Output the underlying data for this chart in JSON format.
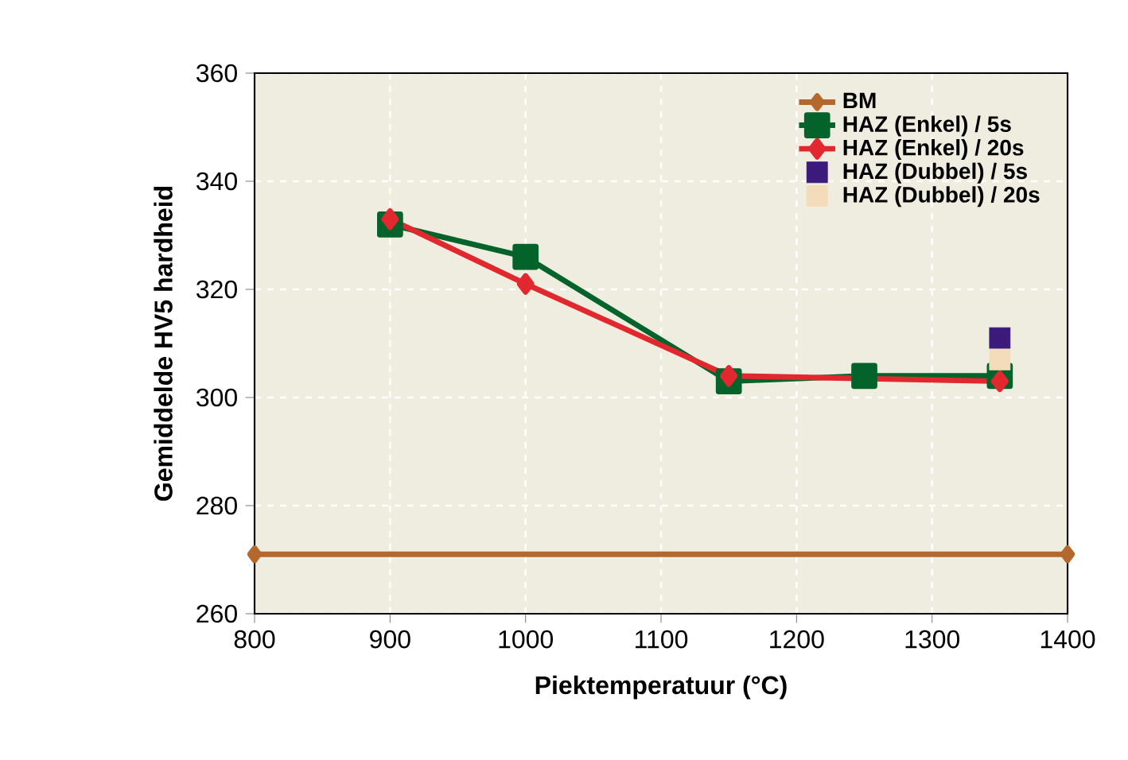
{
  "chart_data": {
    "type": "line",
    "xlabel": "Piektemperatuur (°C)",
    "ylabel": "Gemiddelde HV5 hardheid",
    "xlim": [
      800,
      1400
    ],
    "ylim": [
      260,
      360
    ],
    "xticks": [
      800,
      900,
      1000,
      1100,
      1200,
      1300,
      1400
    ],
    "yticks": [
      260,
      280,
      300,
      320,
      340,
      360
    ],
    "grid": true,
    "legend": "top right",
    "series": [
      {
        "name": "BM",
        "color": "#b5682e",
        "marker": "diamond",
        "x": [
          800,
          1400
        ],
        "values": [
          271,
          271
        ]
      },
      {
        "name": "HAZ (Enkel) / 5s",
        "color": "#04632b",
        "marker": "square",
        "x": [
          900,
          1000,
          1150,
          1250,
          1350
        ],
        "values": [
          332,
          326,
          303,
          304,
          304
        ]
      },
      {
        "name": "HAZ (Enkel) / 20s",
        "color": "#e1282f",
        "marker": "diamond",
        "x": [
          900,
          1000,
          1150,
          1350
        ],
        "values": [
          333,
          321,
          304,
          303
        ]
      },
      {
        "name": "HAZ (Dubbel) / 5s",
        "color": "#3b1a7c",
        "type": "scatter",
        "marker": "square",
        "x": [
          1350
        ],
        "values": [
          311
        ]
      },
      {
        "name": "HAZ (Dubbel) / 20s",
        "color": "#f4dcbb",
        "type": "scatter",
        "marker": "square",
        "x": [
          1350
        ],
        "values": [
          307
        ]
      }
    ]
  }
}
